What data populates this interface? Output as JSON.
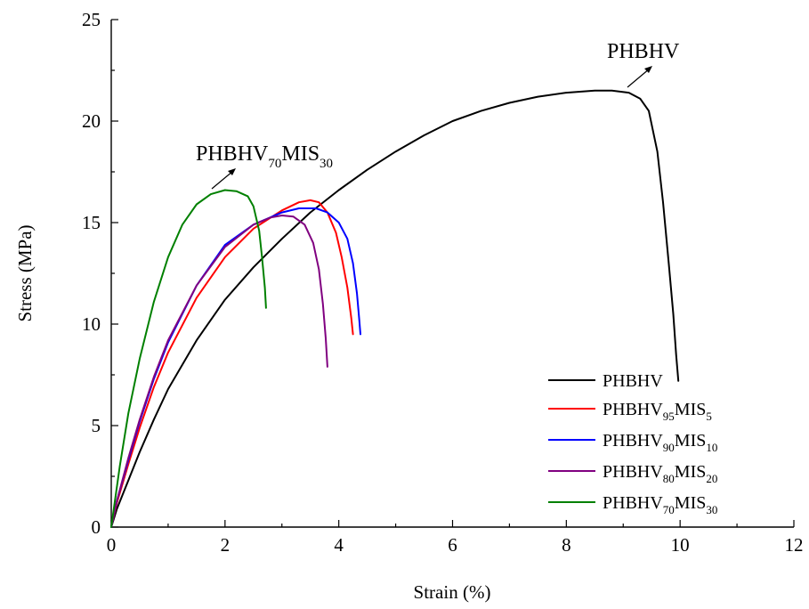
{
  "chart_data": {
    "type": "line",
    "xlabel": "Strain (%)",
    "ylabel": "Stress (MPa)",
    "xlim": [
      0,
      12
    ],
    "ylim": [
      0,
      25
    ],
    "xticks": [
      "0",
      "2",
      "4",
      "6",
      "8",
      "10",
      "12"
    ],
    "yticks": [
      "0",
      "5",
      "10",
      "15",
      "20",
      "25"
    ],
    "grid": false,
    "legend_position": "bottom-right",
    "legend": [
      {
        "base": "PHBHV",
        "sub1": "",
        "mid": "",
        "sub2": "",
        "color": "#000000"
      },
      {
        "base": "PHBHV",
        "sub1": "95",
        "mid": "MIS",
        "sub2": "5",
        "color": "#ff0000"
      },
      {
        "base": "PHBHV",
        "sub1": "90",
        "mid": "MIS",
        "sub2": "10",
        "color": "#0000ff"
      },
      {
        "base": "PHBHV",
        "sub1": "80",
        "mid": "MIS",
        "sub2": "20",
        "color": "#800080"
      },
      {
        "base": "PHBHV",
        "sub1": "70",
        "mid": "MIS",
        "sub2": "30",
        "color": "#008000"
      }
    ],
    "annotations": {
      "top_right": {
        "text": "PHBHV"
      },
      "left": {
        "base": "PHBHV",
        "sub1": "70",
        "mid": "MIS",
        "sub2": "30"
      }
    },
    "series": [
      {
        "color": "#000000",
        "x": [
          0,
          0.1,
          0.3,
          0.5,
          0.75,
          1.0,
          1.5,
          2.0,
          2.5,
          3.0,
          3.5,
          4.0,
          4.5,
          5.0,
          5.5,
          6.0,
          6.5,
          7.0,
          7.5,
          8.0,
          8.5,
          8.8,
          9.1,
          9.3,
          9.45,
          9.6,
          9.7,
          9.8,
          9.88,
          9.93,
          9.97
        ],
        "y": [
          0,
          0.9,
          2.3,
          3.7,
          5.3,
          6.8,
          9.2,
          11.2,
          12.8,
          14.2,
          15.5,
          16.6,
          17.6,
          18.5,
          19.3,
          20.0,
          20.5,
          20.9,
          21.2,
          21.4,
          21.5,
          21.5,
          21.4,
          21.1,
          20.5,
          18.5,
          16.0,
          13.0,
          10.5,
          8.5,
          7.2
        ]
      },
      {
        "color": "#ff0000",
        "x": [
          0,
          0.1,
          0.3,
          0.5,
          0.75,
          1.0,
          1.5,
          2.0,
          2.5,
          3.0,
          3.3,
          3.5,
          3.65,
          3.8,
          3.95,
          4.05,
          4.15,
          4.22,
          4.25
        ],
        "y": [
          0,
          1.2,
          3.1,
          4.9,
          6.9,
          8.6,
          11.3,
          13.3,
          14.7,
          15.6,
          16.0,
          16.1,
          16.0,
          15.5,
          14.5,
          13.3,
          11.8,
          10.3,
          9.5
        ]
      },
      {
        "color": "#0000ff",
        "x": [
          0,
          0.1,
          0.3,
          0.5,
          0.75,
          1.0,
          1.5,
          2.0,
          2.5,
          3.0,
          3.3,
          3.6,
          3.8,
          4.0,
          4.15,
          4.25,
          4.32,
          4.36,
          4.38
        ],
        "y": [
          0,
          1.3,
          3.3,
          5.2,
          7.3,
          9.1,
          11.9,
          13.9,
          14.9,
          15.5,
          15.7,
          15.7,
          15.5,
          15.0,
          14.2,
          13.0,
          11.5,
          10.2,
          9.5
        ]
      },
      {
        "color": "#800080",
        "x": [
          0,
          0.1,
          0.3,
          0.5,
          0.75,
          1.0,
          1.5,
          2.0,
          2.5,
          2.8,
          3.0,
          3.2,
          3.4,
          3.55,
          3.65,
          3.72,
          3.77,
          3.8
        ],
        "y": [
          0,
          1.3,
          3.4,
          5.3,
          7.4,
          9.2,
          11.9,
          13.8,
          14.9,
          15.25,
          15.35,
          15.3,
          14.9,
          14.0,
          12.7,
          11.0,
          9.3,
          7.9
        ]
      },
      {
        "color": "#008000",
        "x": [
          0,
          0.05,
          0.15,
          0.3,
          0.5,
          0.75,
          1.0,
          1.25,
          1.5,
          1.75,
          2.0,
          2.2,
          2.4,
          2.5,
          2.6,
          2.65,
          2.7,
          2.72
        ],
        "y": [
          0,
          1.0,
          3.0,
          5.6,
          8.3,
          11.1,
          13.3,
          14.9,
          15.9,
          16.4,
          16.6,
          16.55,
          16.3,
          15.8,
          14.6,
          13.3,
          11.8,
          10.8
        ]
      }
    ]
  }
}
